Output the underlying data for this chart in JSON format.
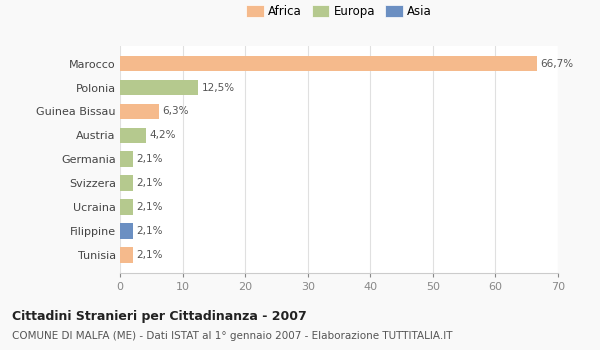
{
  "categories": [
    "Marocco",
    "Polonia",
    "Guinea Bissau",
    "Austria",
    "Germania",
    "Svizzera",
    "Ucraina",
    "Filippine",
    "Tunisia"
  ],
  "values": [
    66.7,
    12.5,
    6.3,
    4.2,
    2.1,
    2.1,
    2.1,
    2.1,
    2.1
  ],
  "labels": [
    "66,7%",
    "12,5%",
    "6,3%",
    "4,2%",
    "2,1%",
    "2,1%",
    "2,1%",
    "2,1%",
    "2,1%"
  ],
  "colors": [
    "#f5ba8c",
    "#b5c98e",
    "#f5ba8c",
    "#b5c98e",
    "#b5c98e",
    "#b5c98e",
    "#b5c98e",
    "#6b8fc2",
    "#f5ba8c"
  ],
  "legend_labels": [
    "Africa",
    "Europa",
    "Asia"
  ],
  "legend_colors": [
    "#f5ba8c",
    "#b5c98e",
    "#6b8fc2"
  ],
  "title": "Cittadini Stranieri per Cittadinanza - 2007",
  "subtitle": "COMUNE DI MALFA (ME) - Dati ISTAT al 1° gennaio 2007 - Elaborazione TUTTITALIA.IT",
  "xlim": [
    0,
    70
  ],
  "xticks": [
    0,
    10,
    20,
    30,
    40,
    50,
    60,
    70
  ],
  "bg_color": "#f9f9f9",
  "plot_bg_color": "#ffffff"
}
